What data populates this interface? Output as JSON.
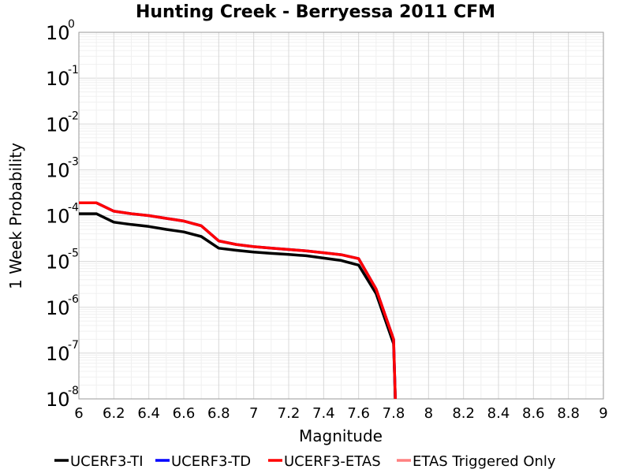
{
  "chart_data": {
    "type": "line",
    "title": "Hunting Creek - Berryessa 2011 CFM",
    "xlabel": "Magnitude",
    "ylabel": "1 Week Probability",
    "xlim": [
      6,
      9
    ],
    "ylim": [
      1e-08,
      1
    ],
    "yscale": "log",
    "grid": true,
    "legend_position": "bottom",
    "x_ticks": [
      "6",
      "6.2",
      "6.4",
      "6.6",
      "6.8",
      "7",
      "7.2",
      "7.4",
      "7.6",
      "7.8",
      "8",
      "8.2",
      "8.4",
      "8.6",
      "8.8",
      "9"
    ],
    "y_ticks": [
      {
        "base": "10",
        "exp": "0"
      },
      {
        "base": "10",
        "exp": "-1"
      },
      {
        "base": "10",
        "exp": "-2"
      },
      {
        "base": "10",
        "exp": "-3"
      },
      {
        "base": "10",
        "exp": "-4"
      },
      {
        "base": "10",
        "exp": "-5"
      },
      {
        "base": "10",
        "exp": "-6"
      },
      {
        "base": "10",
        "exp": "-7"
      },
      {
        "base": "10",
        "exp": "-8"
      }
    ],
    "series": [
      {
        "name": "UCERF3-TI",
        "color": "#000000",
        "x": [
          6.0,
          6.1,
          6.2,
          6.3,
          6.4,
          6.5,
          6.6,
          6.7,
          6.8,
          6.9,
          7.0,
          7.1,
          7.2,
          7.3,
          7.4,
          7.5,
          7.6,
          7.7,
          7.8,
          7.81
        ],
        "y": [
          0.00011,
          0.00011,
          7.2e-05,
          6.4e-05,
          5.8e-05,
          5e-05,
          4.4e-05,
          3.5e-05,
          1.95e-05,
          1.75e-05,
          1.6e-05,
          1.5e-05,
          1.42e-05,
          1.33e-05,
          1.18e-05,
          1.05e-05,
          8.3e-06,
          2e-06,
          1.6e-07,
          1e-08
        ]
      },
      {
        "name": "UCERF3-TD",
        "color": "#0000ff",
        "x": [
          6.0,
          6.1,
          6.2,
          6.3,
          6.4,
          6.5,
          6.6,
          6.7,
          6.8,
          6.9,
          7.0,
          7.1,
          7.2,
          7.3,
          7.4,
          7.5,
          7.6,
          7.7,
          7.8,
          7.81
        ],
        "y": [
          0.00019,
          0.00019,
          0.000125,
          0.00011,
          0.0001,
          8.7e-05,
          7.6e-05,
          6e-05,
          2.8e-05,
          2.35e-05,
          2.1e-05,
          1.95e-05,
          1.82e-05,
          1.7e-05,
          1.55e-05,
          1.4e-05,
          1.15e-05,
          2.5e-06,
          2e-07,
          1e-08
        ]
      },
      {
        "name": "UCERF3-ETAS",
        "color": "#ff0000",
        "x": [
          6.0,
          6.1,
          6.2,
          6.3,
          6.4,
          6.5,
          6.6,
          6.7,
          6.8,
          6.9,
          7.0,
          7.1,
          7.2,
          7.3,
          7.4,
          7.5,
          7.6,
          7.7,
          7.8,
          7.81
        ],
        "y": [
          0.00019,
          0.00019,
          0.000125,
          0.00011,
          0.0001,
          8.7e-05,
          7.6e-05,
          6e-05,
          2.8e-05,
          2.35e-05,
          2.1e-05,
          1.95e-05,
          1.82e-05,
          1.7e-05,
          1.55e-05,
          1.4e-05,
          1.15e-05,
          2.5e-06,
          2e-07,
          1e-08
        ]
      },
      {
        "name": "ETAS Triggered Only",
        "color": "#ff8080",
        "x": [],
        "y": []
      }
    ]
  }
}
